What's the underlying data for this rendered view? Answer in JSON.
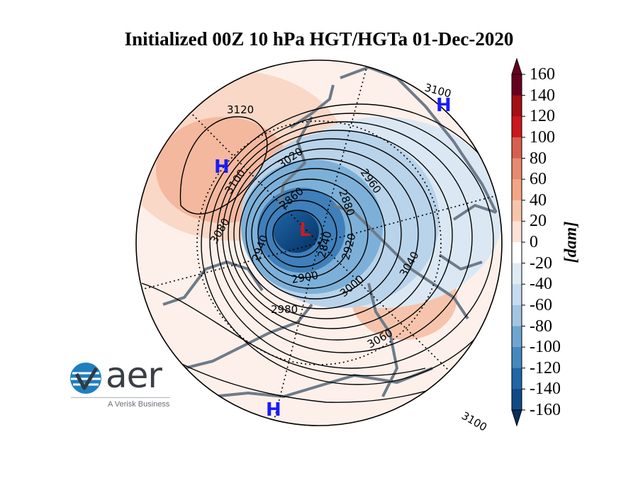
{
  "title": "Initialized 00Z 10 hPa HGT/HGTa 01-Dec-2020",
  "colorbar": {
    "unit": "[dam]",
    "ticks": [
      "160",
      "140",
      "120",
      "100",
      "80",
      "60",
      "40",
      "20",
      "0",
      "-20",
      "-40",
      "-60",
      "-80",
      "-100",
      "-120",
      "-140",
      "-160"
    ],
    "colors": [
      "#67001f",
      "#a50f15",
      "#cb181d",
      "#d6604d",
      "#e88a6d",
      "#f4a582",
      "#f8c5ab",
      "#fbe3d6",
      "#ffffff",
      "#deebf4",
      "#c6dbef",
      "#a2c6e2",
      "#6fa6d0",
      "#4389c0",
      "#2066a8",
      "#0e4a86",
      "#053061"
    ]
  },
  "map": {
    "highs": [
      "H",
      "H",
      "H"
    ],
    "lows": [
      "L"
    ],
    "contour_labels": [
      "3120",
      "3100",
      "3100",
      "3080",
      "3020",
      "2960",
      "2880",
      "2860",
      "2840",
      "2920",
      "2940",
      "2900",
      "2980",
      "3000",
      "3040",
      "3060",
      "3100"
    ]
  },
  "logo": {
    "name": "aer",
    "tagline": "A Verisk Business"
  },
  "colors": {
    "high": "#1a1aff",
    "low": "#c81e1e",
    "coast": "#6d7b8a"
  }
}
